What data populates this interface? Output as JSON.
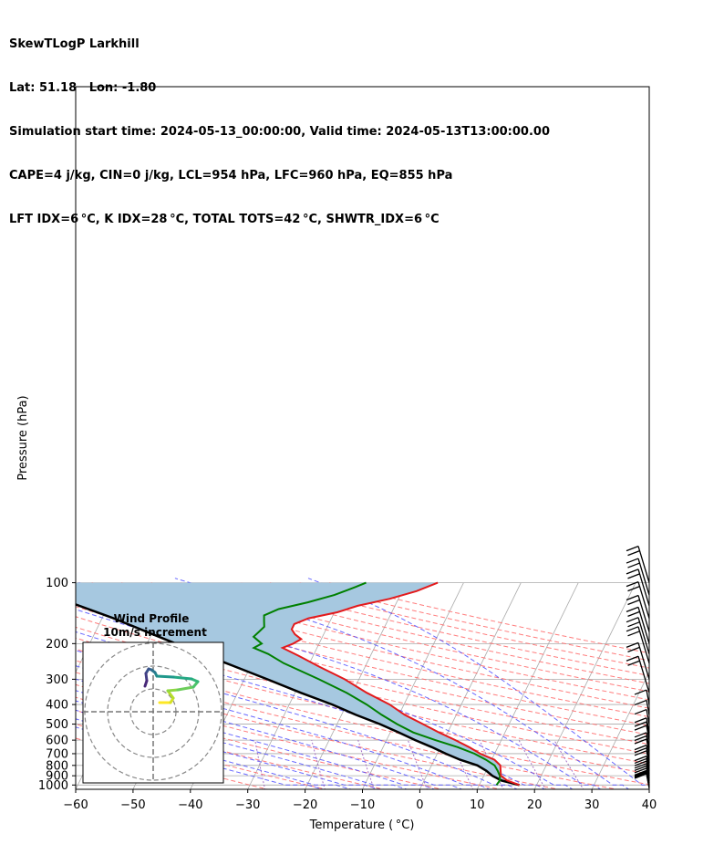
{
  "header": {
    "line1": "SkewTLogP Larkhill",
    "line2": "Lat: 51.18   Lon: -1.80",
    "line3": "Simulation start time: 2024-05-13_00:00:00, Valid time: 2024-05-13T13:00:00.00",
    "line4": "CAPE=4 j/kg, CIN=0 j/kg, LCL=954 hPa, LFC=960 hPa, EQ=855 hPa",
    "line5": "LFT IDX=6 °C, K IDX=28 °C, TOTAL TOTS=42 °C, SHWTR_IDX=6 °C"
  },
  "chart_data": {
    "type": "line",
    "subtype": "skew-t log-p",
    "xlabel": "Temperature ( °C)",
    "ylabel": "Pressure (hPa)",
    "xlim": [
      -60,
      40
    ],
    "ylim": [
      1050,
      100
    ],
    "y_scale": "log",
    "grid": true,
    "x_ticks": [
      -60,
      -50,
      -40,
      -30,
      -20,
      -10,
      0,
      10,
      20,
      30,
      40
    ],
    "x_tick_labels": [
      "−60",
      "−50",
      "−40",
      "−30",
      "−20",
      "−10",
      "0",
      "10",
      "20",
      "30",
      "40"
    ],
    "y_ticks": [
      1000,
      900,
      800,
      700,
      600,
      500,
      400,
      300,
      200,
      100
    ],
    "y_tick_labels": [
      "1000",
      "900",
      "800",
      "700",
      "600",
      "500",
      "400",
      "300",
      "200",
      "100"
    ],
    "colors": {
      "temperature": "#e31a1c",
      "dewpoint": "#008000",
      "parcel": "#000000",
      "fill": "#a6c8e0",
      "dry_adiabat": "#ff6666",
      "moist_adiabat": "#4d4dff",
      "mixing_ratio": "#9b5fc0",
      "isotherm": "#aaaaaa"
    },
    "series": [
      {
        "role": "temperature",
        "p": [
          1000,
          950,
          900,
          850,
          800,
          750,
          700,
          650,
          600,
          550,
          500,
          450,
          400,
          350,
          300,
          260,
          230,
          210,
          200,
          190,
          180,
          170,
          160,
          150,
          140,
          130,
          120,
          110,
          100
        ],
        "t": [
          17,
          14.5,
          13,
          12.5,
          12,
          10.5,
          7.5,
          5,
          2,
          -1.5,
          -5,
          -9,
          -12.5,
          -17.5,
          -22.5,
          -28,
          -32.5,
          -36,
          -34.5,
          -33.5,
          -35,
          -36,
          -36,
          -34,
          -29.5,
          -26.5,
          -21.5,
          -17.5,
          -14.5
        ]
      },
      {
        "role": "dewpoint",
        "p": [
          1000,
          950,
          900,
          850,
          800,
          750,
          700,
          650,
          600,
          550,
          500,
          450,
          400,
          350,
          300,
          250,
          225,
          210,
          200,
          185,
          175,
          165,
          155,
          145,
          135,
          125,
          115,
          105,
          100
        ],
        "t": [
          13,
          13.2,
          12.8,
          12,
          11,
          9,
          6.5,
          3,
          -1.5,
          -6,
          -9.5,
          -13,
          -16.5,
          -21,
          -27,
          -34.5,
          -38,
          -41,
          -40,
          -42,
          -41.5,
          -41,
          -41.5,
          -42,
          -40,
          -35.5,
          -31.5,
          -28.5,
          -27
        ]
      },
      {
        "role": "parcel",
        "p": [
          1000,
          950,
          900,
          850,
          800,
          750,
          700,
          650,
          600,
          550,
          500,
          450,
          400,
          350,
          300,
          250,
          200,
          150,
          100
        ],
        "t": [
          17,
          13.5,
          11.5,
          10,
          8,
          4.5,
          1.5,
          -1.5,
          -5,
          -8.5,
          -12.5,
          -17.5,
          -22.5,
          -29,
          -36,
          -44.5,
          -55,
          -68,
          -88
        ]
      }
    ],
    "wind_barbs_pressure": [
      1040,
      1030,
      1020,
      1010,
      1000,
      975,
      950,
      925,
      900,
      875,
      850,
      800,
      775,
      750,
      700,
      675,
      650,
      600,
      575,
      550,
      500,
      450,
      400,
      350,
      300,
      250,
      225,
      200,
      175,
      150,
      130,
      115,
      100
    ],
    "hodograph": {
      "title": "Wind Profile",
      "subtitle": "10m/s increment"
    }
  }
}
